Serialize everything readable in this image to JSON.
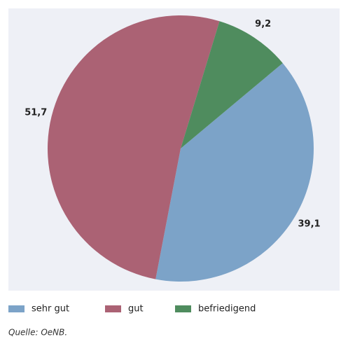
{
  "chart_data": {
    "type": "pie",
    "categories": [
      "sehr gut",
      "gut",
      "befriedigend"
    ],
    "values": [
      39.1,
      51.7,
      9.2
    ],
    "value_labels": [
      "39,1",
      "51,7",
      "9,2"
    ],
    "colors": [
      "#7ca3c8",
      "#ab6274",
      "#4f8c5e"
    ],
    "source": "Quelle: OeNB."
  }
}
